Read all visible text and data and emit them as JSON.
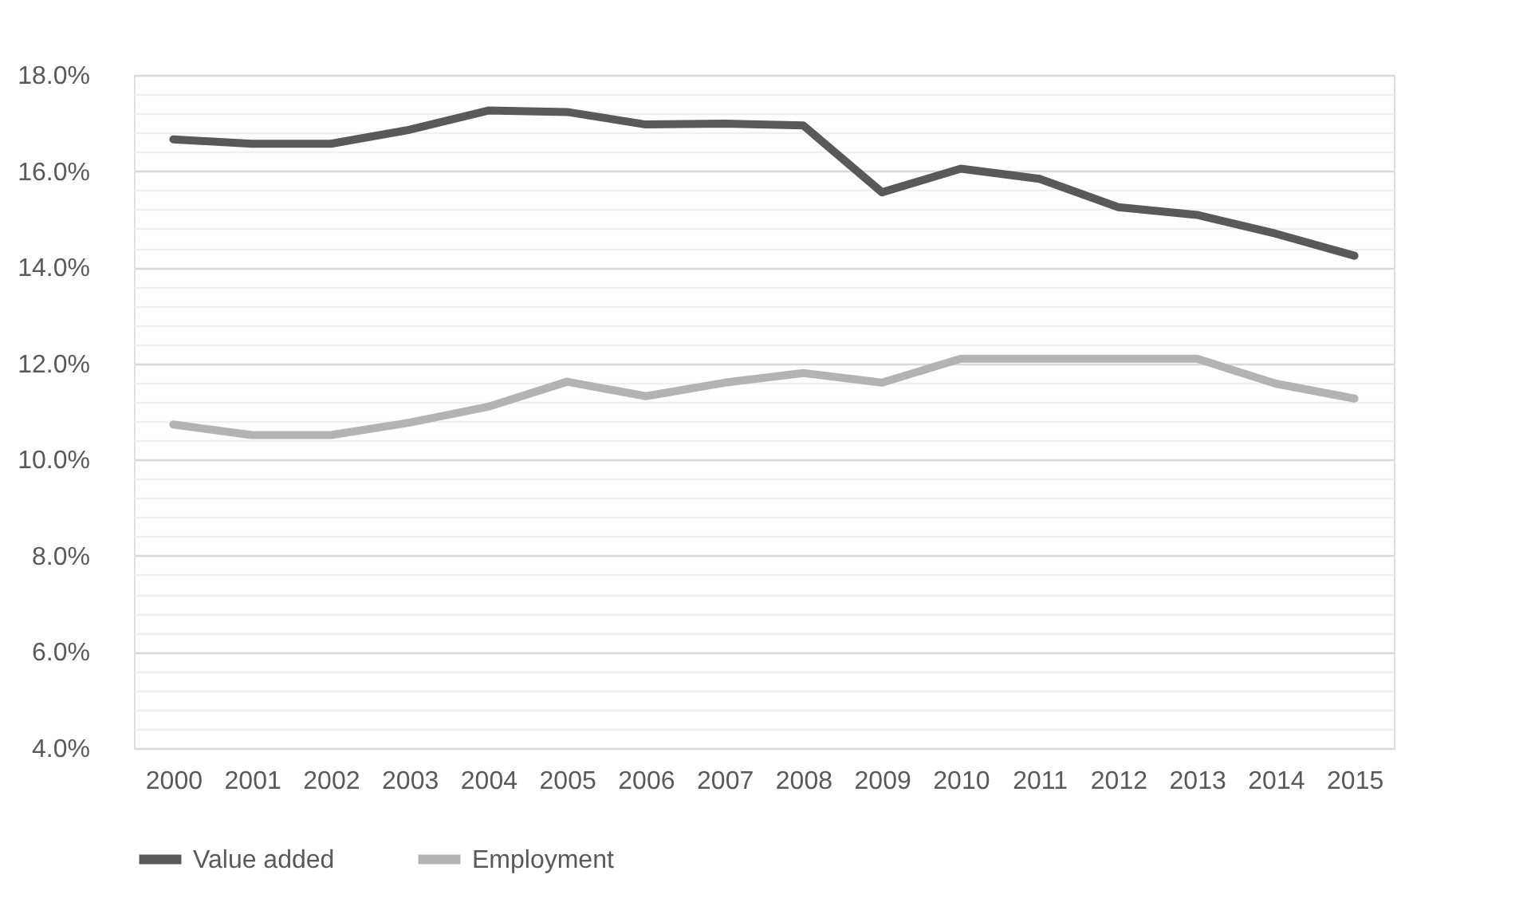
{
  "chart_data": {
    "type": "line",
    "categories": [
      "2000",
      "2001",
      "2002",
      "2003",
      "2004",
      "2005",
      "2006",
      "2007",
      "2008",
      "2009",
      "2010",
      "2011",
      "2012",
      "2013",
      "2014",
      "2015"
    ],
    "series": [
      {
        "name": "Value added",
        "color": "#595959",
        "values": [
          16.66,
          16.57,
          16.57,
          16.86,
          17.26,
          17.23,
          16.97,
          16.99,
          16.95,
          15.56,
          16.05,
          15.84,
          15.25,
          15.09,
          14.7,
          14.24
        ]
      },
      {
        "name": "Employment",
        "color": "#b3b3b3",
        "values": [
          10.73,
          10.51,
          10.51,
          10.77,
          11.1,
          11.62,
          11.32,
          11.6,
          11.8,
          11.6,
          12.1,
          12.1,
          12.1,
          12.1,
          11.58,
          11.27
        ]
      }
    ],
    "ylim": [
      4,
      18
    ],
    "yticks": [
      {
        "value": 4,
        "label": "4.0%"
      },
      {
        "value": 4.4,
        "label": null
      },
      {
        "value": 4.8,
        "label": null
      },
      {
        "value": 5.2,
        "label": null
      },
      {
        "value": 5.6,
        "label": null
      },
      {
        "value": 6,
        "label": "6.0%"
      },
      {
        "value": 6.4,
        "label": null
      },
      {
        "value": 6.8,
        "label": null
      },
      {
        "value": 7.2,
        "label": null
      },
      {
        "value": 7.6,
        "label": null
      },
      {
        "value": 8,
        "label": "8.0%"
      },
      {
        "value": 8.4,
        "label": null
      },
      {
        "value": 8.8,
        "label": null
      },
      {
        "value": 9.2,
        "label": null
      },
      {
        "value": 9.6,
        "label": null
      },
      {
        "value": 10,
        "label": "10.0%"
      },
      {
        "value": 10.4,
        "label": null
      },
      {
        "value": 10.8,
        "label": null
      },
      {
        "value": 11.2,
        "label": null
      },
      {
        "value": 11.6,
        "label": null
      },
      {
        "value": 12,
        "label": "12.0%"
      },
      {
        "value": 12.4,
        "label": null
      },
      {
        "value": 12.8,
        "label": null
      },
      {
        "value": 13.2,
        "label": null
      },
      {
        "value": 13.6,
        "label": null
      },
      {
        "value": 14,
        "label": "14.0%"
      },
      {
        "value": 14.4,
        "label": null
      },
      {
        "value": 14.8,
        "label": null
      },
      {
        "value": 15.2,
        "label": null
      },
      {
        "value": 15.6,
        "label": null
      },
      {
        "value": 16,
        "label": "16.0%"
      },
      {
        "value": 16.4,
        "label": null
      },
      {
        "value": 16.8,
        "label": null
      },
      {
        "value": 17.2,
        "label": null
      },
      {
        "value": 17.6,
        "label": null
      },
      {
        "value": 18,
        "label": "18.0%"
      }
    ],
    "grid": "y",
    "legend": "bottom",
    "marker": "none",
    "line_style": "solid"
  }
}
